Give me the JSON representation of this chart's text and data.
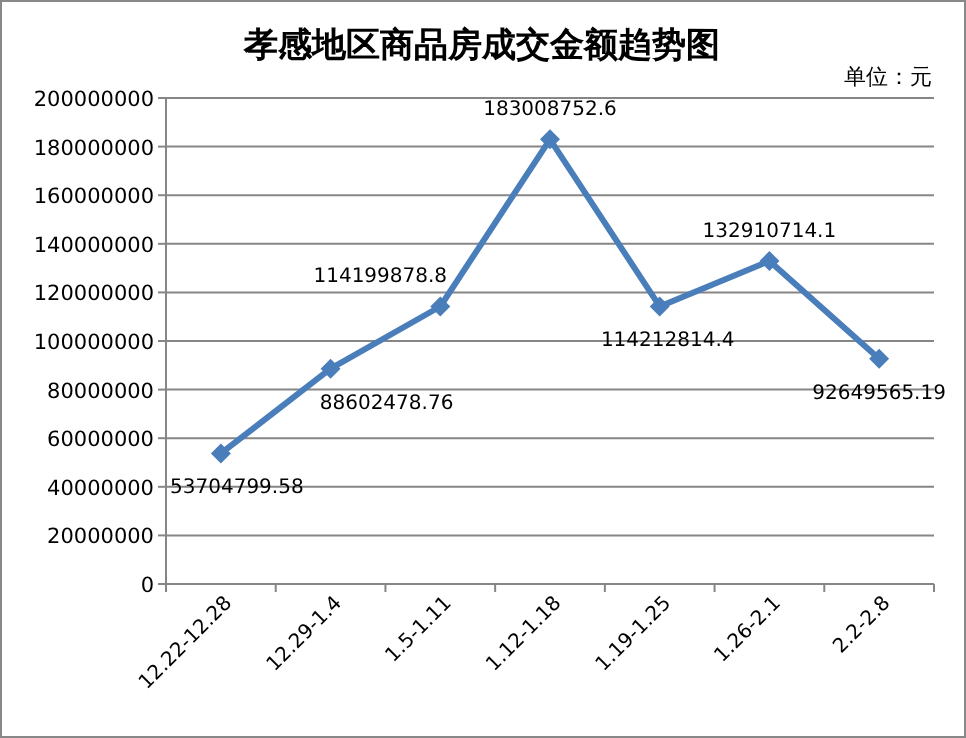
{
  "chart_data": {
    "type": "line",
    "title": "孝感地区商品房成交金额趋势图",
    "annotations": [
      "单位：元"
    ],
    "categories": [
      "12.22-12.28",
      "12.29-1.4",
      "1.5-1.11",
      "1.12-1.18",
      "1.19-1.25",
      "1.26-2.1",
      "2.2-2.8"
    ],
    "values": [
      53704799.58,
      88602478.76,
      114199878.8,
      183008752.6,
      114212814.4,
      132910714.1,
      92649565.19
    ],
    "color": "#4a7ebb",
    "marker": "diamond",
    "data_labels": true,
    "grid": "y",
    "ylim": [
      0,
      200000000
    ],
    "yticks": [
      0,
      20000000,
      40000000,
      60000000,
      80000000,
      100000000,
      120000000,
      140000000,
      160000000,
      180000000,
      200000000
    ]
  }
}
